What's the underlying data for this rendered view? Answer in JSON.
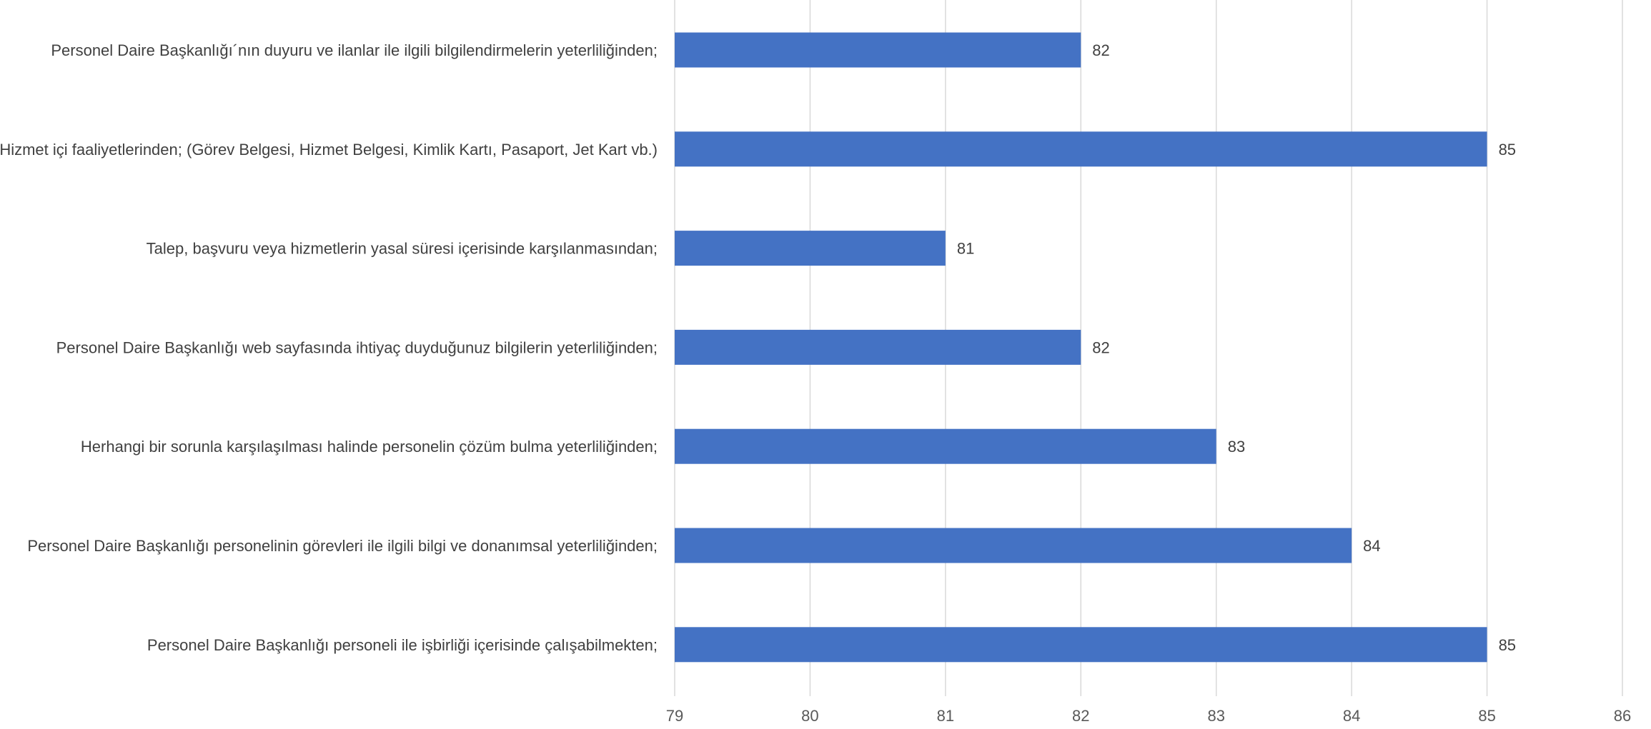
{
  "chart_data": {
    "type": "bar",
    "orientation": "horizontal",
    "categories": [
      "Personel Daire Başkanlığı´nın duyuru ve ilanlar ile ilgili bilgilendirmelerin yeterliliğinden;",
      "Hizmet içi faaliyetlerinden; (Görev Belgesi, Hizmet Belgesi, Kimlik Kartı, Pasaport, Jet Kart vb.)",
      "Talep, başvuru veya hizmetlerin yasal süresi içerisinde karşılanmasından;",
      "Personel Daire Başkanlığı web sayfasında ihtiyaç duyduğunuz bilgilerin yeterliliğinden;",
      "Herhangi bir sorunla karşılaşılması halinde personelin çözüm bulma yeterliliğinden;",
      "Personel Daire Başkanlığı personelinin görevleri ile ilgili bilgi ve donanımsal yeterliliğinden;",
      "Personel Daire Başkanlığı personeli ile işbirliği içerisinde çalışabilmekten;"
    ],
    "values": [
      82,
      85,
      81,
      82,
      83,
      84,
      85
    ],
    "value_labels": [
      "82",
      "85",
      "81",
      "82",
      "83",
      "84",
      "85"
    ],
    "xlim": [
      79,
      86
    ],
    "x_ticks": [
      79,
      80,
      81,
      82,
      83,
      84,
      85,
      86
    ],
    "x_tick_labels": [
      "79",
      "80",
      "81",
      "82",
      "83",
      "84",
      "85",
      "86"
    ],
    "title": "",
    "xlabel": "",
    "ylabel": "",
    "grid": "vertical",
    "legend": "none",
    "colors": {
      "bar": "#4472C4",
      "grid": "#D9D9D9",
      "text": "#404040",
      "tick_text": "#595959"
    }
  }
}
